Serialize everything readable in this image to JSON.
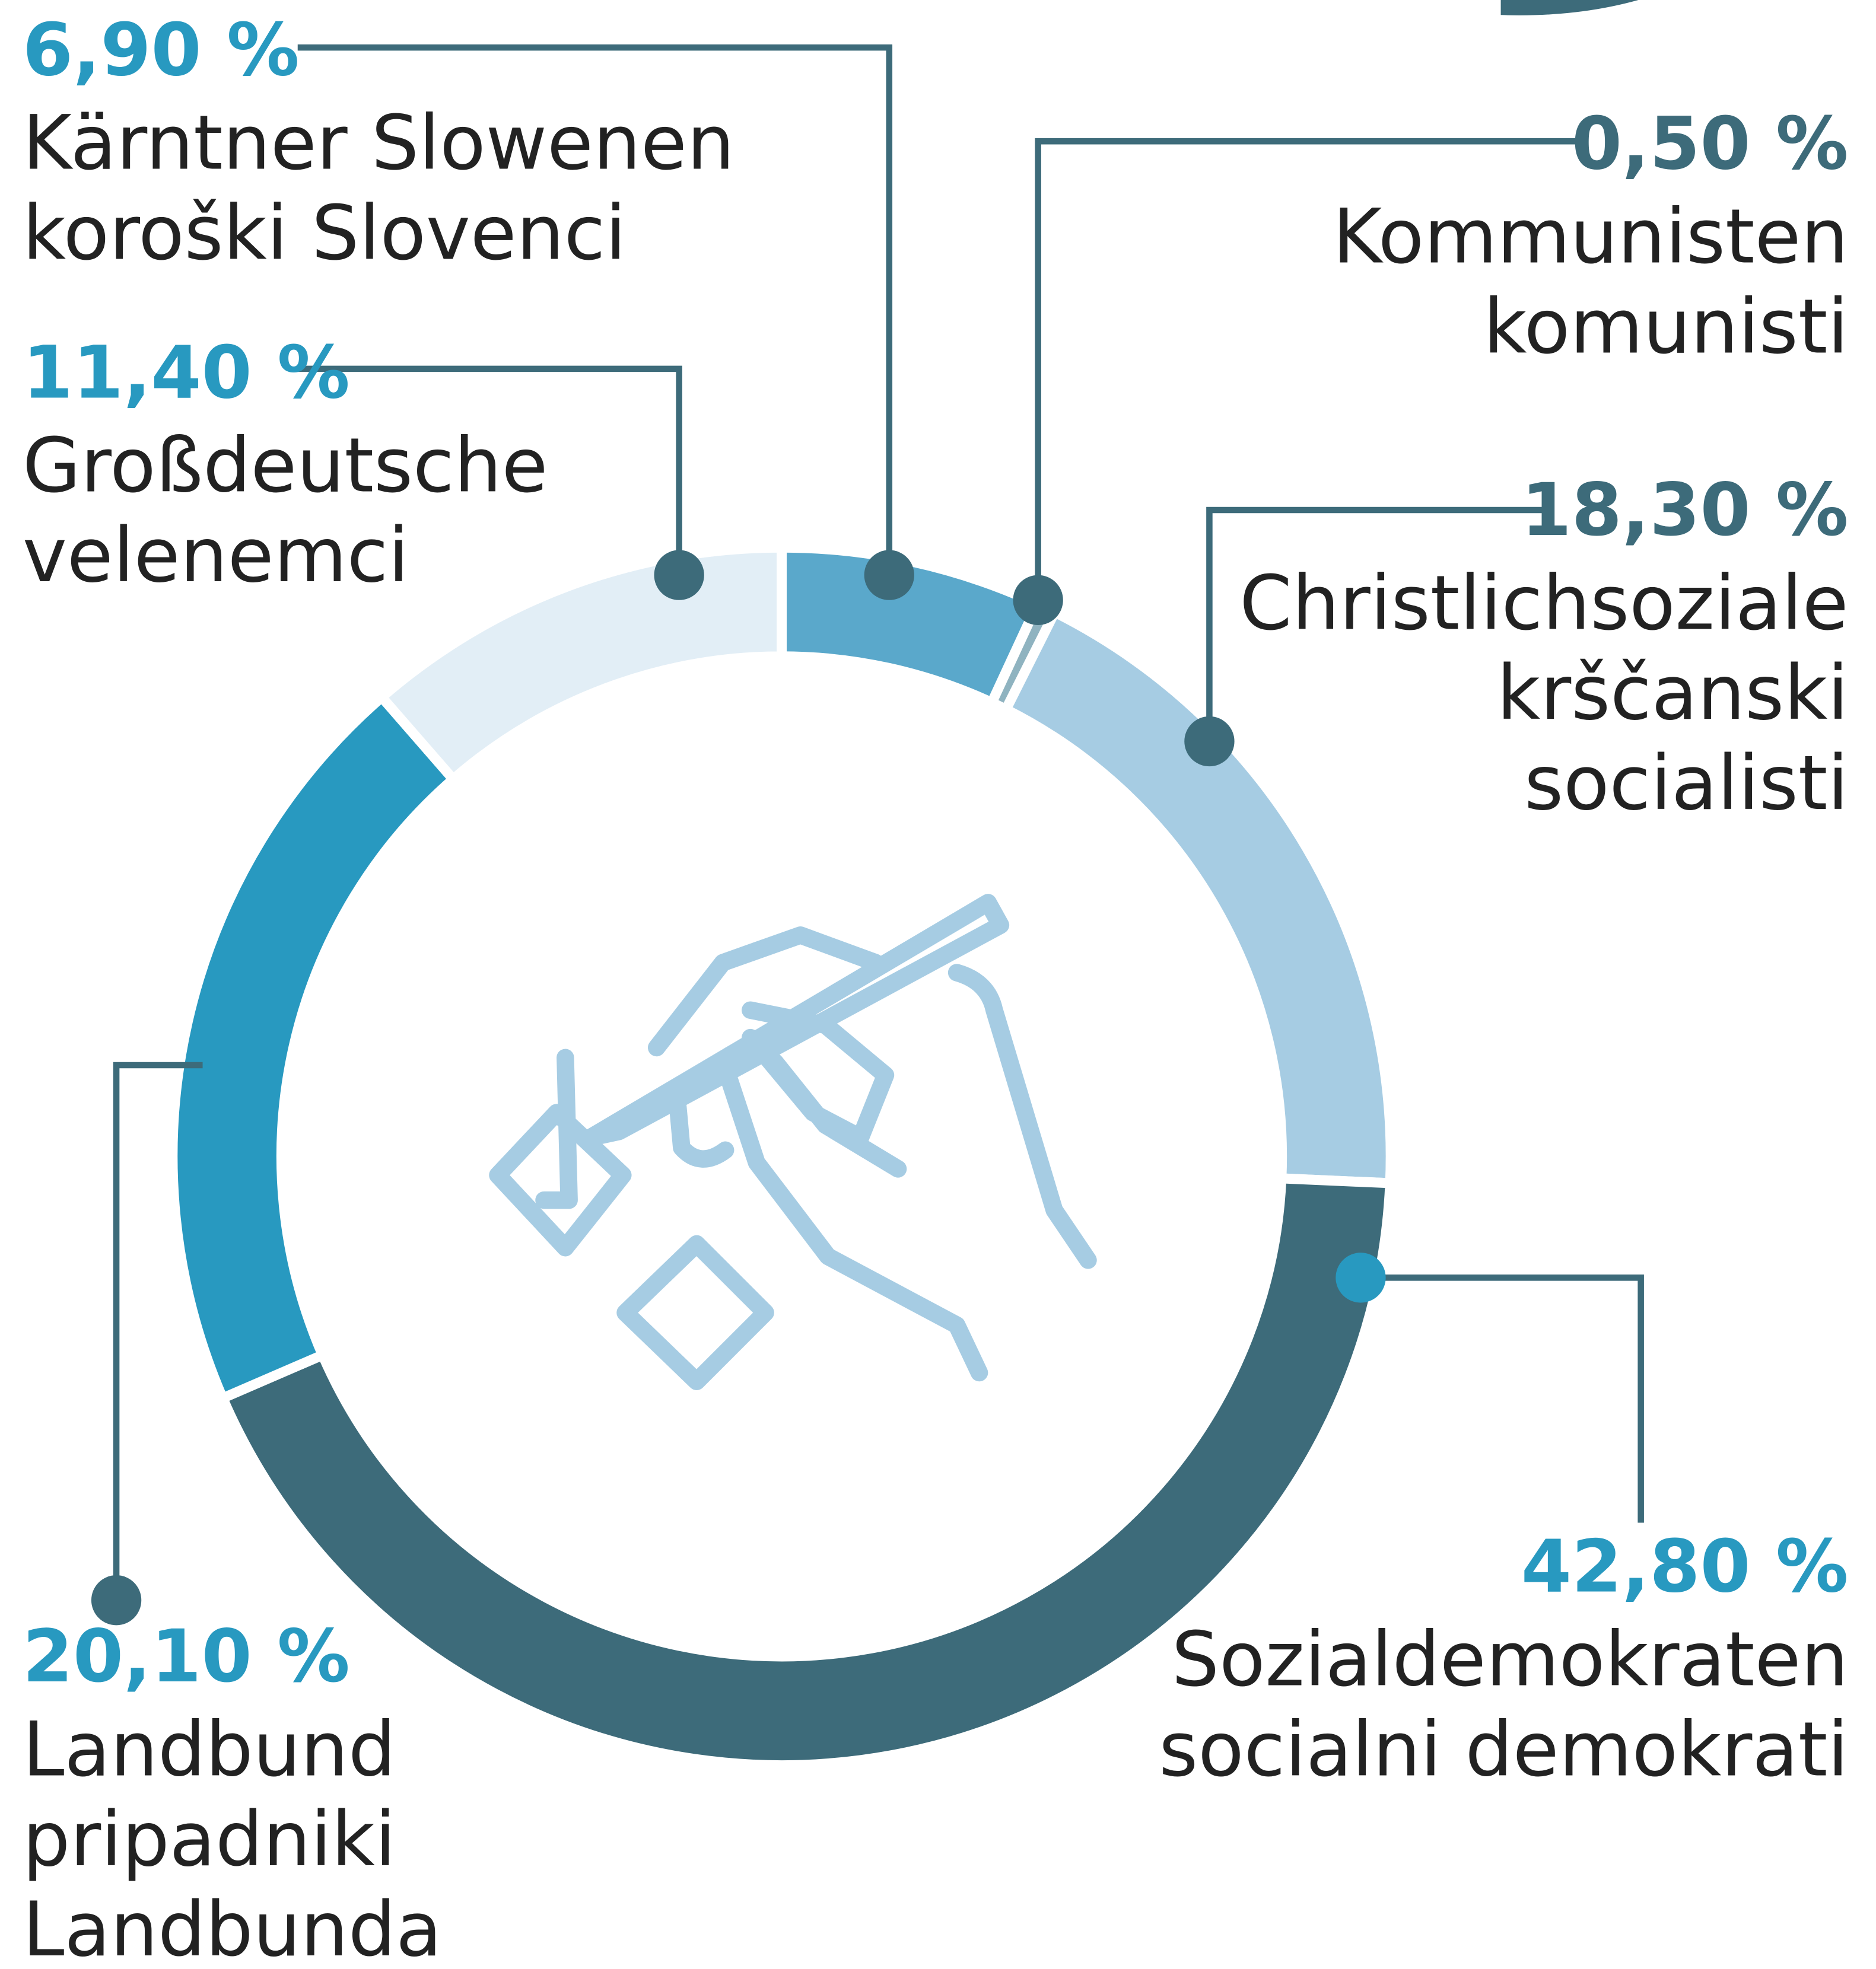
{
  "chart_data": {
    "type": "pie",
    "donut": true,
    "categories": [
      [
        "Kärntner Slowenen",
        "koroški Slovenci"
      ],
      [
        "Kommunisten",
        "komunisti"
      ],
      [
        "Christlichsoziale",
        "krščanski",
        "socialisti"
      ],
      [
        "Sozialdemokraten",
        "socialni demokrati"
      ],
      [
        "Landbund",
        "pripadniki",
        "Landbunda"
      ],
      [
        "Großdeutsche",
        "velenemci"
      ]
    ],
    "values": [
      6.9,
      0.5,
      18.3,
      42.8,
      20.1,
      11.4
    ],
    "value_labels": [
      "6,90 %",
      "0,50 %",
      "18,30 %",
      "42,80 %",
      "20,10 %",
      "11,40 %"
    ],
    "colors": [
      "#5aa8cb",
      "#8fb3c0",
      "#a6cce3",
      "#3d6b7a",
      "#2899c0",
      "#e2eef6"
    ]
  }
}
